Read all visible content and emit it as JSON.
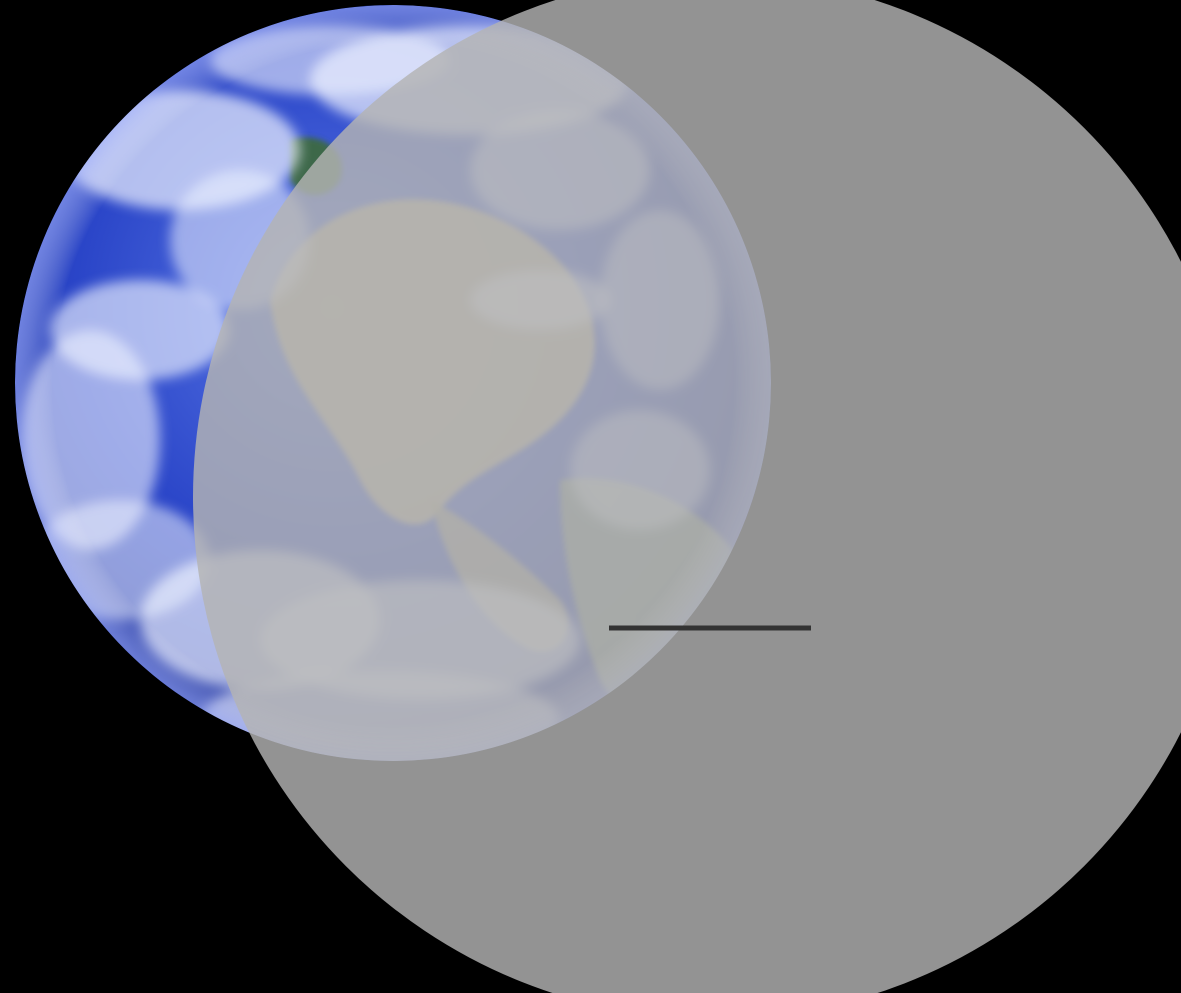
{
  "scene": {
    "background_color": "#000000",
    "earth": {
      "ocean_color": "#2a45c8",
      "deep_ocean_color": "#0f1f8a",
      "cloud_color": "#eef2ff",
      "land_color": "#c9b98a",
      "green_land_color": "#3d6b3a"
    },
    "overlay_circle": {
      "color": "#b3b3b3",
      "opacity": 0.82
    },
    "line_marker": {
      "color": "#333333"
    }
  }
}
